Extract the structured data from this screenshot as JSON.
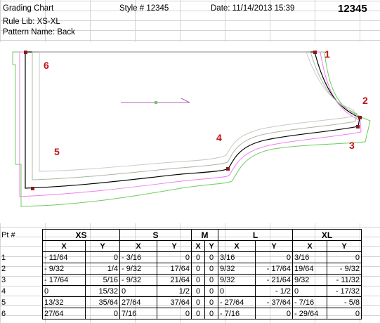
{
  "header": {
    "title": "Grading Chart",
    "style": "Style # 12345",
    "date": "Date: 11/14/2013 15:39",
    "id": "12345",
    "rule_lib": "Rule Lib: XS-XL",
    "pattern_name": "Pattern Name: Back"
  },
  "drawing": {
    "point_labels": [
      "1",
      "2",
      "3",
      "4",
      "5",
      "6"
    ],
    "colors": {
      "outline": "#000000",
      "xs": "#c8c8c8",
      "s": "#a8b8a0",
      "l": "#f07ef0",
      "xl": "#6ccc5c",
      "label": "#c0101a"
    }
  },
  "table": {
    "pt_header": "Pt #",
    "sizes": [
      "XS",
      "S",
      "M",
      "L",
      "XL"
    ],
    "x_label": "X",
    "y_label": "Y",
    "rows": [
      {
        "pt": "1",
        "vals": [
          "- 11/64",
          "0",
          "- 3/16",
          "0",
          "0",
          "0",
          "3/16",
          "0",
          "3/16",
          "0"
        ]
      },
      {
        "pt": "2",
        "vals": [
          "- 9/32",
          "1/4",
          "- 9/32",
          "17/64",
          "0",
          "0",
          "9/32",
          "- 17/64",
          "19/64",
          "- 9/32"
        ]
      },
      {
        "pt": "3",
        "vals": [
          "- 17/64",
          "5/16",
          "- 9/32",
          "21/64",
          "0",
          "0",
          "9/32",
          "- 21/64",
          "9/32",
          "- 11/32"
        ]
      },
      {
        "pt": "4",
        "vals": [
          "0",
          "15/32",
          "0",
          "1/2",
          "0",
          "0",
          "0",
          "- 1/2",
          "0",
          "- 17/32"
        ]
      },
      {
        "pt": "5",
        "vals": [
          "13/32",
          "35/64",
          "27/64",
          "37/64",
          "0",
          "0",
          "- 27/64",
          "- 37/64",
          "- 7/16",
          "- 5/8"
        ]
      },
      {
        "pt": "6",
        "vals": [
          "27/64",
          "0",
          "7/16",
          "0",
          "0",
          "0",
          "- 7/16",
          "0",
          "- 29/64",
          "0"
        ]
      }
    ]
  }
}
